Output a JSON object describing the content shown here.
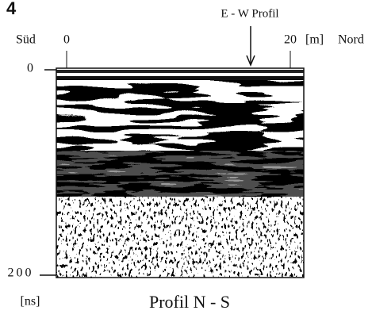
{
  "figure": {
    "number": "4",
    "annotation": "E - W Profil",
    "caption": "Profil N - S",
    "x_axis": {
      "left_label": "Süd",
      "right_label": "Nord",
      "ticks": [
        "0",
        "20"
      ],
      "unit": "[m]"
    },
    "y_axis": {
      "ticks": [
        "0",
        "200"
      ],
      "unit": "[ns]"
    }
  }
}
